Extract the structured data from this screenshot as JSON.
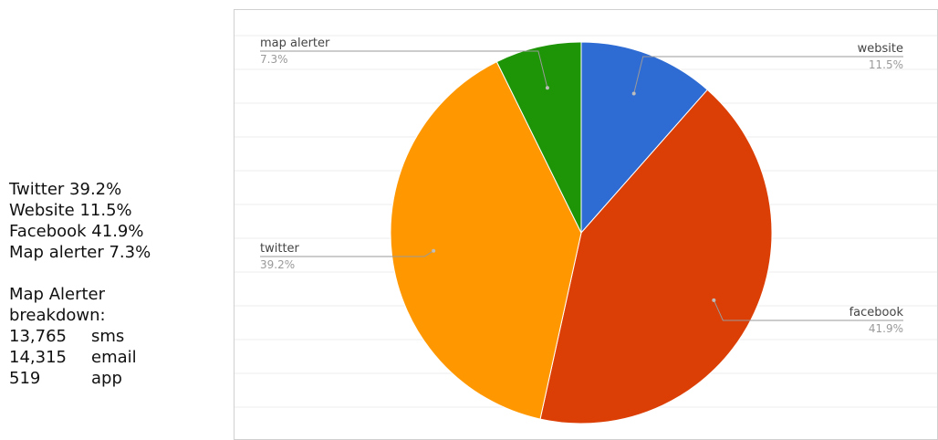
{
  "summary": {
    "lines": [
      "Twitter 39.2%",
      "Website 11.5%",
      "Facebook 41.9%",
      "Map alerter 7.3%"
    ],
    "breakdown_title": [
      "Map Alerter",
      "breakdown:"
    ],
    "breakdown": [
      {
        "count": "13,765",
        "channel": "sms"
      },
      {
        "count": "14,315",
        "channel": "email"
      },
      {
        "count": "519",
        "channel": "app"
      }
    ]
  },
  "chart_data": {
    "type": "pie",
    "slices": [
      {
        "label": "website",
        "value": 11.5,
        "display": "11.5%",
        "color": "#2e6bd3"
      },
      {
        "label": "facebook",
        "value": 41.9,
        "display": "41.9%",
        "color": "#dc3f05"
      },
      {
        "label": "twitter",
        "value": 39.2,
        "display": "39.2%",
        "color": "#ff9800"
      },
      {
        "label": "map alerter",
        "value": 7.3,
        "display": "7.3%",
        "color": "#1e9407"
      }
    ],
    "legend": "none",
    "grid": true
  }
}
